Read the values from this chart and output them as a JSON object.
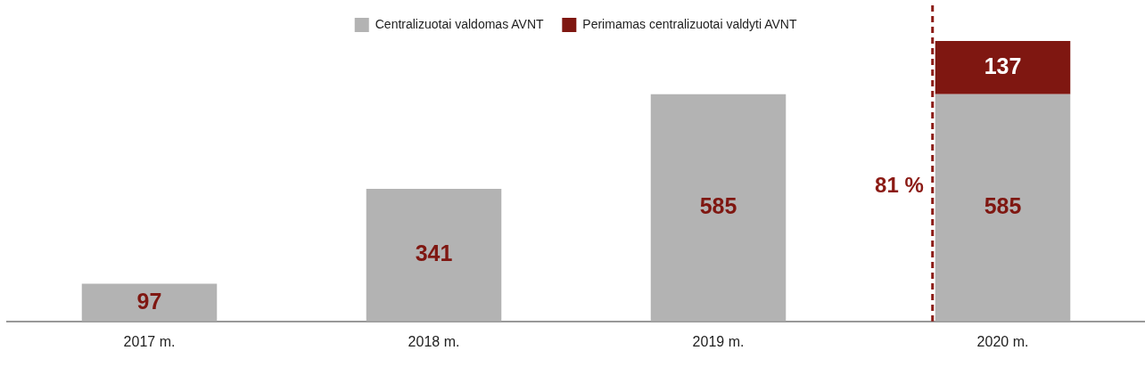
{
  "chart_data": {
    "type": "bar",
    "stacked": true,
    "categories": [
      "2017 m.",
      "2018 m.",
      "2019 m.",
      "2020 m."
    ],
    "series": [
      {
        "name": "Centralizuotai valdomas AVNT",
        "color": "#b3b3b3",
        "values": [
          97,
          341,
          585,
          585
        ]
      },
      {
        "name": "Perimamas centralizuotai valdyti AVNT",
        "color": "#7f1711",
        "values": [
          null,
          null,
          null,
          137
        ]
      }
    ],
    "data_labels": true,
    "legend": "top",
    "grid": false,
    "ref_lines": [
      {
        "axis": "x",
        "value": "2020 m.",
        "label": "81 %",
        "color": "#8b1a14",
        "line_style": "dashed"
      }
    ]
  }
}
